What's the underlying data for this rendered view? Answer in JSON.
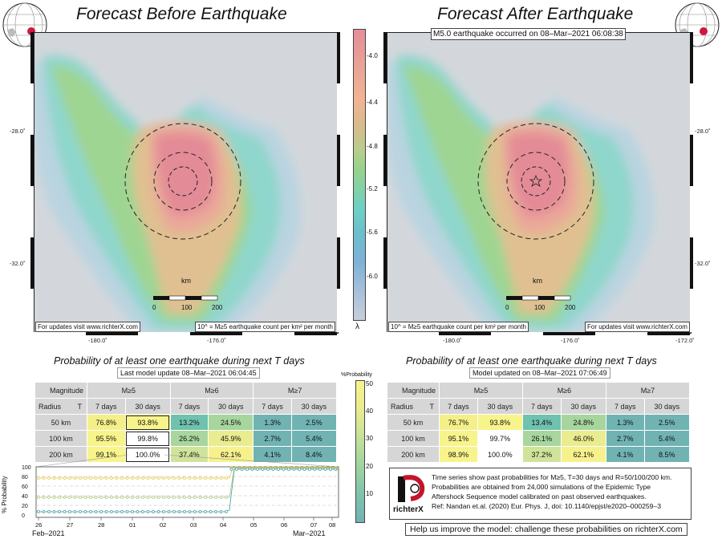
{
  "left_panel": {
    "title": "Forecast Before Earthquake",
    "updates_note": "For updates visit www.richterX.com",
    "count_note": "10^ = M≥5 earthquake count per km² per month",
    "lat_labels": [
      "-28.0˚",
      "-32.0˚"
    ],
    "lon_labels": [
      "-180.0˚",
      "-176.0˚"
    ],
    "scale_label": "km",
    "scale_ticks": [
      "0",
      "100",
      "200"
    ]
  },
  "right_panel": {
    "title": "Forecast After Earthquake",
    "event_note": "M5.0 earthquake occurred on 08–Mar–2021 06:08:38",
    "updates_note": "For updates visit www.richterX.com",
    "count_note": "10^ = M≥5 earthquake count per km² per month",
    "lat_labels": [
      "-28.0˚",
      "-32.0˚"
    ],
    "lon_labels": [
      "-180.0˚",
      "-176.0˚",
      "-172.0˚"
    ],
    "scale_label": "km",
    "scale_ticks": [
      "0",
      "100",
      "200"
    ]
  },
  "colorbar": {
    "ticks": [
      "-4.0",
      "-4.4",
      "-4.8",
      "-5.2",
      "-5.6",
      "-6.0"
    ],
    "symbol": "λ",
    "colors": [
      "#e58e98",
      "#f2b493",
      "#d7bc8c",
      "#96d28c",
      "#6cd0c6",
      "#7eb2d8",
      "#c7cedb"
    ]
  },
  "prob_colorbar": {
    "title": "%Probability",
    "ticks": [
      "50",
      "40",
      "30",
      "20",
      "10"
    ]
  },
  "left_table": {
    "subtitle": "Probability of at least one earthquake during next T days",
    "update": "Last model update 08–Mar–2021 06:04:45",
    "mag_header": "Magnitude",
    "radius_header": "Radius",
    "t_header": "T",
    "mags": [
      "M≥5",
      "M≥6",
      "M≥7"
    ],
    "periods": [
      "7 days",
      "30 days"
    ],
    "rows": [
      {
        "radius": "50 km",
        "values": [
          "76.8%",
          "93.8%",
          "13.2%",
          "24.5%",
          "1.3%",
          "2.5%"
        ],
        "colors": [
          "#f5ef89",
          "#f8f48c",
          "#6fc2ad",
          "#a6d59e",
          "#71b3b3",
          "#71b3b3"
        ]
      },
      {
        "radius": "100 km",
        "values": [
          "95.5%",
          "99.8%",
          "26.2%",
          "45.9%",
          "2.7%",
          "5.4%"
        ],
        "colors": [
          "#f8f48c",
          "#ffffff",
          "#a8d69e",
          "#e9ec8f",
          "#71b3b3",
          "#71b3b3"
        ]
      },
      {
        "radius": "200 km",
        "values": [
          "99.1%",
          "100.0%",
          "37.4%",
          "62.1%",
          "4.1%",
          "8.4%"
        ],
        "colors": [
          "#f8f48c",
          "#ffffff",
          "#cfe49a",
          "#f7f18d",
          "#71b3b3",
          "#71b3b3"
        ]
      }
    ]
  },
  "right_table": {
    "subtitle": "Probability of at least one earthquake during next T days",
    "update": "Model updated on 08–Mar–2021 07:06:49",
    "mag_header": "Magnitude",
    "radius_header": "Radius",
    "t_header": "T",
    "mags": [
      "M≥5",
      "M≥6",
      "M≥7"
    ],
    "periods": [
      "7 days",
      "30 days"
    ],
    "rows": [
      {
        "radius": "50 km",
        "values": [
          "76.7%",
          "93.8%",
          "13.4%",
          "24.8%",
          "1.3%",
          "2.5%"
        ],
        "colors": [
          "#f5ef89",
          "#f8f48c",
          "#6fc2ad",
          "#a6d59e",
          "#71b3b3",
          "#71b3b3"
        ]
      },
      {
        "radius": "100 km",
        "values": [
          "95.1%",
          "99.7%",
          "26.1%",
          "46.0%",
          "2.7%",
          "5.4%"
        ],
        "colors": [
          "#f8f48c",
          "#ffffff",
          "#a8d69e",
          "#e9ec8f",
          "#71b3b3",
          "#71b3b3"
        ]
      },
      {
        "radius": "200 km",
        "values": [
          "98.9%",
          "100.0%",
          "37.2%",
          "62.1%",
          "4.1%",
          "8.5%"
        ],
        "colors": [
          "#f8f48c",
          "#ffffff",
          "#cfe49a",
          "#f7f18d",
          "#71b3b3",
          "#71b3b3"
        ]
      }
    ]
  },
  "timeseries": {
    "ylabel": "% Probability",
    "yticks": [
      "100",
      "80",
      "60",
      "40",
      "20",
      "0"
    ],
    "xticks": [
      "26",
      "27",
      "28",
      "01",
      "02",
      "03",
      "04",
      "05",
      "06",
      "07",
      "08"
    ],
    "month_left": "Feb–2021",
    "month_right": "Mar–2021"
  },
  "legend": {
    "brand": "richterX",
    "lines": [
      "Time series show past probabilities for M≥5, T=30 days and R=50/100/200 km.",
      "Probabilities are obtained from 24,000 simulations of the Epidemic Type",
      "Aftershock Sequence model calibrated on past observed earthquakes.",
      "Ref: Nandan et.al. (2020) Eur. Phys. J, doi: 10.1140/epjst/e2020–000259–3"
    ]
  },
  "help_text": "Help us improve the model: challenge these probabilities on richterX.com"
}
